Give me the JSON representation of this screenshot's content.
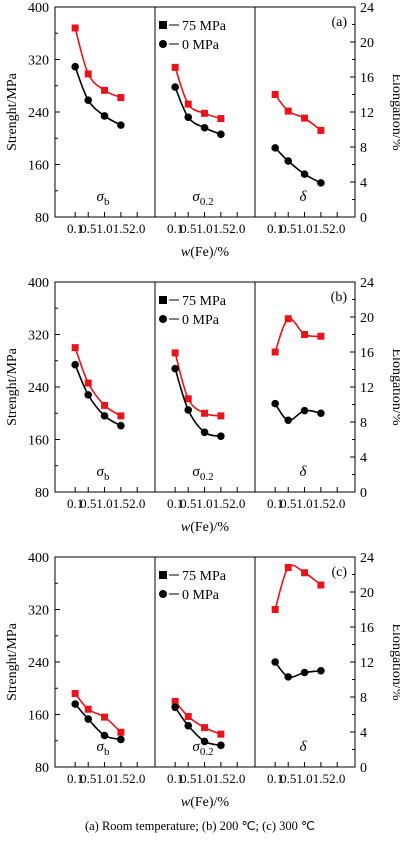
{
  "caption": "(a) Room temperature; (b) 200 ℃; (c) 300 ℃",
  "colors": {
    "series_75": "#e8141b",
    "series_0": "#000000",
    "axis": "#000000"
  },
  "chart_data": [
    {
      "type": "line",
      "panel_label": "(a)",
      "ylabel_left": "Strenght/MPa",
      "ylabel_right": "Elongation/%",
      "xlabel": "w(Fe)/%",
      "x_ticks": [
        "0.1",
        "0.5",
        "1.0",
        "1.5",
        "2.0"
      ],
      "ylim_left": [
        80,
        400
      ],
      "yticks_left": [
        80,
        160,
        240,
        320,
        400
      ],
      "ylim_right": [
        0,
        24
      ],
      "yticks_right": [
        0,
        4,
        8,
        12,
        16,
        20,
        24
      ],
      "legend": [
        "75 MPa",
        "0 MPa"
      ],
      "legend_position": "top-center",
      "grid": false,
      "subplots": [
        {
          "label": "σb",
          "axis": "left",
          "series": [
            {
              "name": "75 MPa",
              "x": [
                0.1,
                0.5,
                1.0,
                1.5
              ],
              "y": [
                368,
                298,
                273,
                262
              ]
            },
            {
              "name": "0 MPa",
              "x": [
                0.1,
                0.5,
                1.0,
                1.5
              ],
              "y": [
                309,
                258,
                234,
                220
              ]
            }
          ]
        },
        {
          "label": "σ0.2",
          "axis": "left",
          "series": [
            {
              "name": "75 MPa",
              "x": [
                0.1,
                0.5,
                1.0,
                1.5
              ],
              "y": [
                308,
                252,
                238,
                230
              ]
            },
            {
              "name": "0 MPa",
              "x": [
                0.1,
                0.5,
                1.0,
                1.5
              ],
              "y": [
                278,
                232,
                216,
                206
              ]
            }
          ]
        },
        {
          "label": "δ",
          "axis": "right",
          "series": [
            {
              "name": "75 MPa",
              "x": [
                0.1,
                0.5,
                1.0,
                1.5
              ],
              "y": [
                14.0,
                12.1,
                11.3,
                9.9
              ]
            },
            {
              "name": "0 MPa",
              "x": [
                0.1,
                0.5,
                1.0,
                1.5
              ],
              "y": [
                7.9,
                6.4,
                4.9,
                3.9
              ]
            }
          ]
        }
      ]
    },
    {
      "type": "line",
      "panel_label": "(b)",
      "ylabel_left": "Strenght/MPa",
      "ylabel_right": "Elongation/%",
      "xlabel": "w(Fe)/%",
      "x_ticks": [
        "0.1",
        "0.5",
        "1.0",
        "1.5",
        "2.0"
      ],
      "ylim_left": [
        80,
        400
      ],
      "yticks_left": [
        80,
        160,
        240,
        320,
        400
      ],
      "ylim_right": [
        0,
        24
      ],
      "yticks_right": [
        0,
        4,
        8,
        12,
        16,
        20,
        24
      ],
      "legend": [
        "75 MPa",
        "0 MPa"
      ],
      "legend_position": "top-center",
      "grid": false,
      "subplots": [
        {
          "label": "σb",
          "axis": "left",
          "series": [
            {
              "name": "75 MPa",
              "x": [
                0.1,
                0.5,
                1.0,
                1.5
              ],
              "y": [
                300,
                246,
                212,
                196
              ]
            },
            {
              "name": "0 MPa",
              "x": [
                0.1,
                0.5,
                1.0,
                1.5
              ],
              "y": [
                274,
                228,
                196,
                181
              ]
            }
          ]
        },
        {
          "label": "σ0.2",
          "axis": "left",
          "series": [
            {
              "name": "75 MPa",
              "x": [
                0.1,
                0.5,
                1.0,
                1.5
              ],
              "y": [
                292,
                222,
                200,
                196
              ]
            },
            {
              "name": "0 MPa",
              "x": [
                0.1,
                0.5,
                1.0,
                1.5
              ],
              "y": [
                268,
                205,
                171,
                165
              ]
            }
          ]
        },
        {
          "label": "δ",
          "axis": "right",
          "series": [
            {
              "name": "75 MPa",
              "x": [
                0.1,
                0.5,
                1.0,
                1.5
              ],
              "y": [
                16.0,
                19.8,
                18.0,
                17.8
              ]
            },
            {
              "name": "0 MPa",
              "x": [
                0.1,
                0.5,
                1.0,
                1.5
              ],
              "y": [
                10.1,
                8.2,
                9.3,
                9.0
              ]
            }
          ]
        }
      ]
    },
    {
      "type": "line",
      "panel_label": "(c)",
      "ylabel_left": "Strenght/MPa",
      "ylabel_right": "Elongation/%",
      "xlabel": "w(Fe)/%",
      "x_ticks": [
        "0.1",
        "0.5",
        "1.0",
        "1.5",
        "2.0"
      ],
      "ylim_left": [
        80,
        400
      ],
      "yticks_left": [
        80,
        160,
        240,
        320,
        400
      ],
      "ylim_right": [
        0,
        24
      ],
      "yticks_right": [
        0,
        4,
        8,
        12,
        16,
        20,
        24
      ],
      "legend": [
        "75 MPa",
        "0 MPa"
      ],
      "legend_position": "top-center",
      "grid": false,
      "subplots": [
        {
          "label": "σb",
          "axis": "left",
          "series": [
            {
              "name": "75 MPa",
              "x": [
                0.1,
                0.5,
                1.0,
                1.5
              ],
              "y": [
                192,
                168,
                156,
                133
              ]
            },
            {
              "name": "0 MPa",
              "x": [
                0.1,
                0.5,
                1.0,
                1.5
              ],
              "y": [
                176,
                153,
                128,
                122
              ]
            }
          ]
        },
        {
          "label": "σ0.2",
          "axis": "left",
          "series": [
            {
              "name": "75 MPa",
              "x": [
                0.1,
                0.5,
                1.0,
                1.5
              ],
              "y": [
                180,
                157,
                140,
                130
              ]
            },
            {
              "name": "0 MPa",
              "x": [
                0.1,
                0.5,
                1.0,
                1.5
              ],
              "y": [
                171,
                143,
                119,
                113
              ]
            }
          ]
        },
        {
          "label": "δ",
          "axis": "right",
          "series": [
            {
              "name": "75 MPa",
              "x": [
                0.1,
                0.5,
                1.0,
                1.5
              ],
              "y": [
                18.0,
                22.8,
                22.2,
                20.8
              ]
            },
            {
              "name": "0 MPa",
              "x": [
                0.1,
                0.5,
                1.0,
                1.5
              ],
              "y": [
                12.0,
                10.3,
                10.8,
                11.0
              ]
            }
          ]
        }
      ]
    }
  ]
}
